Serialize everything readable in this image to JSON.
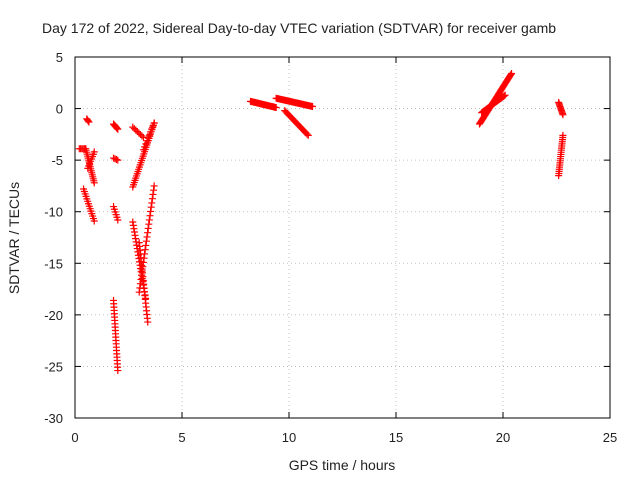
{
  "chart_data": {
    "type": "scatter",
    "title": "Day 172 of 2022, Sidereal Day-to-day VTEC variation (SDTVAR) for receiver gamb",
    "xlabel": "GPS time / hours",
    "ylabel": "SDTVAR / TECUs",
    "xlim": [
      0,
      25
    ],
    "ylim": [
      -30,
      5
    ],
    "xticks": [
      "0",
      "5",
      "10",
      "15",
      "20",
      "25"
    ],
    "yticks": [
      "5",
      "0",
      "-5",
      "-10",
      "-15",
      "-20",
      "-25",
      "-30"
    ],
    "grid": true,
    "marker": "+",
    "color": "#ff0000",
    "segments": [
      {
        "x0": 0.2,
        "x1": 0.5,
        "y0": -3.9,
        "y1": -3.9,
        "n": 6
      },
      {
        "x0": 0.5,
        "x1": 0.9,
        "y0": -3.9,
        "y1": -7.2,
        "n": 18
      },
      {
        "x0": 0.55,
        "x1": 0.65,
        "y0": -1.0,
        "y1": -1.3,
        "n": 4
      },
      {
        "x0": 0.6,
        "x1": 0.9,
        "y0": -5.8,
        "y1": -4.2,
        "n": 8
      },
      {
        "x0": 0.4,
        "x1": 0.9,
        "y0": -7.8,
        "y1": -10.9,
        "n": 14
      },
      {
        "x0": 1.8,
        "x1": 2.0,
        "y0": -1.5,
        "y1": -2.0,
        "n": 8
      },
      {
        "x0": 1.8,
        "x1": 2.0,
        "y0": -4.8,
        "y1": -5.0,
        "n": 4
      },
      {
        "x0": 1.8,
        "x1": 2.0,
        "y0": -9.5,
        "y1": -10.8,
        "n": 6
      },
      {
        "x0": 1.8,
        "x1": 2.0,
        "y0": -18.6,
        "y1": -25.4,
        "n": 22
      },
      {
        "x0": 2.7,
        "x1": 3.7,
        "y0": -7.6,
        "y1": -1.4,
        "n": 30
      },
      {
        "x0": 2.7,
        "x1": 3.2,
        "y0": -1.8,
        "y1": -2.8,
        "n": 8
      },
      {
        "x0": 2.7,
        "x1": 3.3,
        "y0": -11.0,
        "y1": -18.4,
        "n": 24
      },
      {
        "x0": 3.0,
        "x1": 3.4,
        "y0": -13.0,
        "y1": -20.7,
        "n": 22
      },
      {
        "x0": 3.0,
        "x1": 3.7,
        "y0": -17.8,
        "y1": -7.5,
        "n": 26
      },
      {
        "x0": 3.2,
        "x1": 3.7,
        "y0": -4.0,
        "y1": -1.4,
        "n": 10
      },
      {
        "x0": 8.2,
        "x1": 9.4,
        "y0": 0.7,
        "y1": 0.1,
        "n": 30
      },
      {
        "x0": 9.4,
        "x1": 11.1,
        "y0": 1.0,
        "y1": 0.2,
        "n": 40
      },
      {
        "x0": 9.8,
        "x1": 10.9,
        "y0": -0.2,
        "y1": -2.6,
        "n": 22
      },
      {
        "x0": 18.9,
        "x1": 20.4,
        "y0": -1.5,
        "y1": 3.4,
        "n": 50
      },
      {
        "x0": 19.0,
        "x1": 20.1,
        "y0": -0.4,
        "y1": 1.3,
        "n": 26
      },
      {
        "x0": 22.6,
        "x1": 22.8,
        "y0": 0.6,
        "y1": -0.6,
        "n": 10
      },
      {
        "x0": 22.6,
        "x1": 22.8,
        "y0": -6.5,
        "y1": -2.6,
        "n": 20
      }
    ]
  }
}
